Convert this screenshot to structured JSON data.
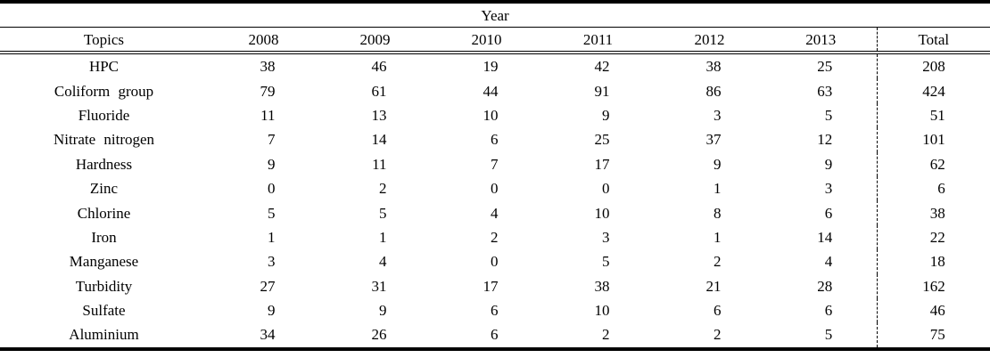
{
  "table": {
    "spanning_header": "Year",
    "columns": {
      "topic": "Topics",
      "years": [
        "2008",
        "2009",
        "2010",
        "2011",
        "2012",
        "2013"
      ],
      "total": "Total"
    },
    "rows": [
      {
        "topic": "HPC",
        "values": [
          38,
          46,
          19,
          42,
          38,
          25
        ],
        "total": 208
      },
      {
        "topic": "Coliform group",
        "values": [
          79,
          61,
          44,
          91,
          86,
          63
        ],
        "total": 424
      },
      {
        "topic": "Fluoride",
        "values": [
          11,
          13,
          10,
          9,
          3,
          5
        ],
        "total": 51
      },
      {
        "topic": "Nitrate nitrogen",
        "values": [
          7,
          14,
          6,
          25,
          37,
          12
        ],
        "total": 101
      },
      {
        "topic": "Hardness",
        "values": [
          9,
          11,
          7,
          17,
          9,
          9
        ],
        "total": 62
      },
      {
        "topic": "Zinc",
        "values": [
          0,
          2,
          0,
          0,
          1,
          3
        ],
        "total": 6
      },
      {
        "topic": "Chlorine",
        "values": [
          5,
          5,
          4,
          10,
          8,
          6
        ],
        "total": 38
      },
      {
        "topic": "Iron",
        "values": [
          1,
          1,
          2,
          3,
          1,
          14
        ],
        "total": 22
      },
      {
        "topic": "Manganese",
        "values": [
          3,
          4,
          0,
          5,
          2,
          4
        ],
        "total": 18
      },
      {
        "topic": "Turbidity",
        "values": [
          27,
          31,
          17,
          38,
          21,
          28
        ],
        "total": 162
      },
      {
        "topic": "Sulfate",
        "values": [
          9,
          9,
          6,
          10,
          6,
          6
        ],
        "total": 46
      },
      {
        "topic": "Aluminium",
        "values": [
          34,
          26,
          6,
          2,
          2,
          5
        ],
        "total": 75
      }
    ],
    "text_color": "#000000",
    "background_color": "#ffffff"
  }
}
